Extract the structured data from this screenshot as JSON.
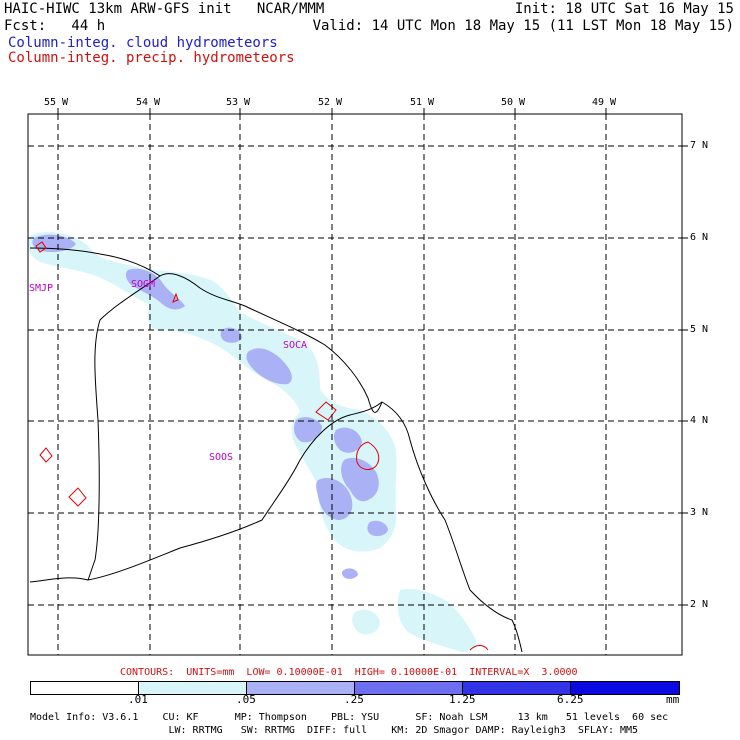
{
  "header": {
    "line1_left": "HAIC-HIWC 13km ARW-GFS init   NCAR/MMM",
    "line1_right": "Init: 18 UTC Sat 16 May 15",
    "line2_left": "Fcst:   44 h",
    "line2_right": "Valid: 14 UTC Mon 18 May 15 (11 LST Mon 18 May 15)",
    "field1": "Column-integ. cloud hydrometeors",
    "field2": "Column-integ. precip. hydrometeors"
  },
  "map": {
    "lon_labels": [
      "55 W",
      "54 W",
      "53 W",
      "52 W",
      "51 W",
      "50 W",
      "49 W"
    ],
    "lat_labels": [
      "7 N",
      "6 N",
      "5 N",
      "4 N",
      "3 N",
      "2 N"
    ],
    "stations": [
      "SMJP",
      "SOGM",
      "SOCA",
      "SOOS"
    ]
  },
  "contours_line": "CONTOURS:  UNITS=mm  LOW= 0.10000E-01  HIGH= 0.10000E-01  INTERVAL=X  3.0000",
  "colorbar": {
    "ticks": [
      ".01",
      ".05",
      ".25",
      "1.25",
      "6.25"
    ],
    "unit": "mm",
    "colors": [
      "#ffffff",
      "#d8f6fa",
      "#aab2f5",
      "#6e6ef0",
      "#3232e6",
      "#0a0ae0"
    ]
  },
  "model_info": {
    "line1": "Model Info: V3.6.1    CU: KF      MP: Thompson    PBL: YSU      SF: Noah LSM     13 km   51 levels  60 sec",
    "line2": "                       LW: RRTMG   SW: RRTMG  DIFF: full    KM: 2D Smagor DAMP: Rayleigh3  SFLAY: MM5"
  },
  "colors": {
    "blue_text": "#2020c8",
    "red_text": "#d01010",
    "station_text": "#c000c0",
    "light_cloud": "#d8f6fa",
    "mid_cloud": "#aab2f5",
    "precip_contour": "#e00000"
  }
}
